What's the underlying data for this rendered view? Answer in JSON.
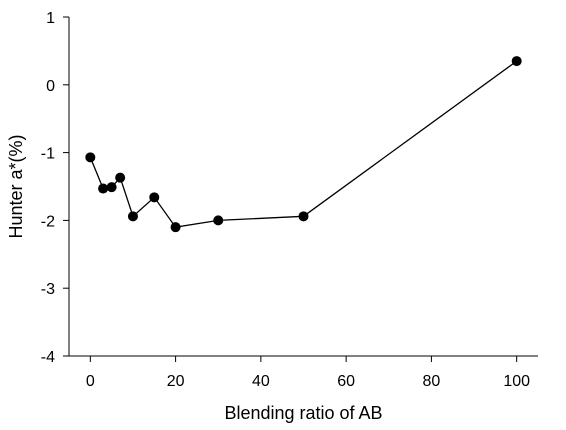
{
  "chart_data": {
    "type": "line",
    "title": "",
    "xlabel": "Blending ratio of AB",
    "ylabel": "Hunter a*(%)",
    "xlim": [
      -5,
      105
    ],
    "ylim": [
      -4,
      1
    ],
    "x_ticks": [
      0,
      20,
      40,
      60,
      80,
      100
    ],
    "y_ticks": [
      -4,
      -3,
      -2,
      -1,
      0,
      1
    ],
    "x_tick_labels": [
      "0",
      "20",
      "40",
      "60",
      "80",
      "100"
    ],
    "y_tick_labels": [
      "-4",
      "-3",
      "-2",
      "-1",
      "0",
      "1"
    ],
    "grid": false,
    "legend": "none",
    "series": [
      {
        "x": [
          0,
          3,
          5,
          7,
          10,
          15,
          20,
          30,
          50,
          100
        ],
        "y": [
          -1.07,
          -1.53,
          -1.51,
          -1.37,
          -1.94,
          -1.66,
          -2.1,
          -2.0,
          -1.94,
          0.35
        ],
        "marker": "filled-circle",
        "color": "#000000"
      }
    ]
  }
}
